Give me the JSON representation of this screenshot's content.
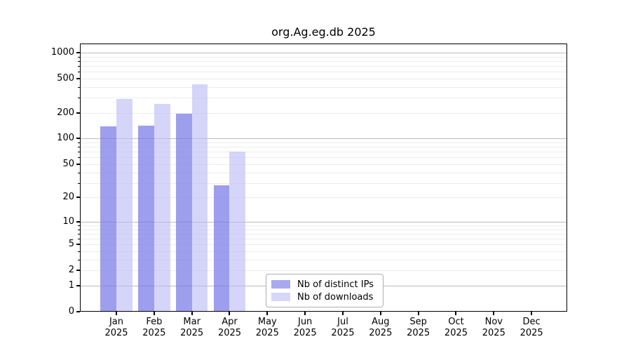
{
  "chart_data": {
    "type": "bar",
    "title": "org.Ag.eg.db 2025",
    "scale": "log1p",
    "grid": "both",
    "legend_position": "bottom-center",
    "categories": [
      "Jan",
      "Feb",
      "Mar",
      "Apr",
      "May",
      "Jun",
      "Jul",
      "Aug",
      "Sep",
      "Oct",
      "Nov",
      "Dec"
    ],
    "category_year": "2025",
    "series": [
      {
        "name": "Nb of distinct IPs",
        "swatch_color": "#a9a9f0",
        "fill_color": "rgba(120,120,232,0.72)",
        "values": [
          140,
          143,
          195,
          28,
          0,
          0,
          0,
          0,
          0,
          0,
          0,
          0
        ]
      },
      {
        "name": "Nb of downloads",
        "swatch_color": "#d7d7f7",
        "fill_color": "rgba(187,187,246,0.62)",
        "values": [
          290,
          253,
          430,
          71,
          0,
          0,
          0,
          0,
          0,
          0,
          0,
          0
        ]
      }
    ],
    "y_ticks": [
      0,
      1,
      2,
      5,
      10,
      20,
      50,
      100,
      200,
      500,
      1000
    ],
    "ylim": [
      0,
      1280
    ],
    "major_gridlines": [
      1,
      10,
      100,
      1000
    ],
    "colors": {
      "major_grid": "#bbbbbb",
      "minor_grid": "#ececec",
      "spine": "#000000",
      "background": "#ffffff"
    }
  }
}
